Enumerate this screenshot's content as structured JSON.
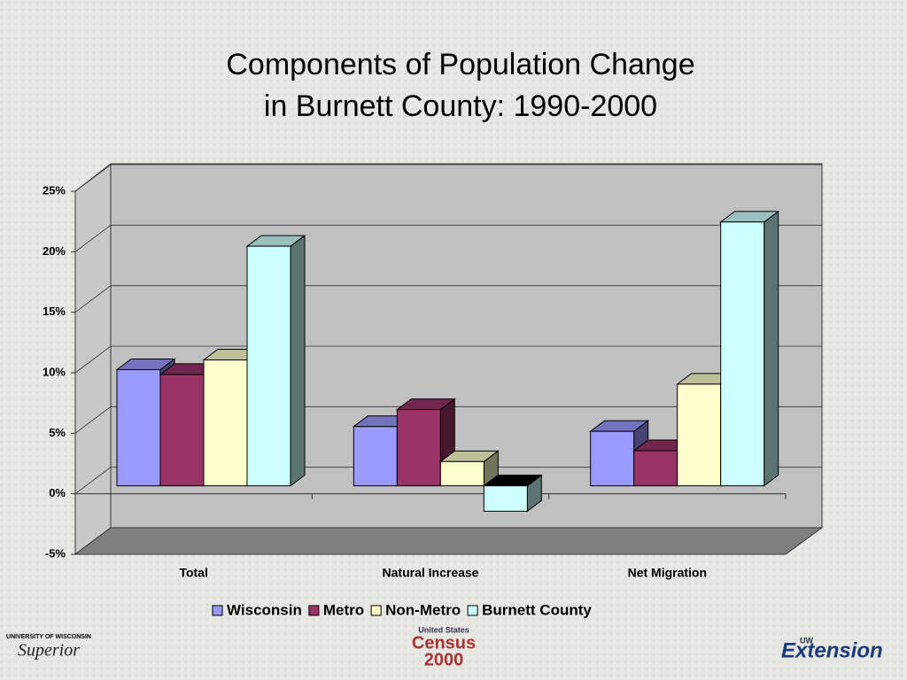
{
  "chart_data": {
    "type": "bar3d",
    "title": "Components of Population Change",
    "subtitle": "in Burnett County: 1990-2000",
    "categories": [
      "Total",
      "Natural Increase",
      "Net Migration"
    ],
    "series": [
      {
        "name": "Wisconsin",
        "color": "#9999ff",
        "values": [
          9.6,
          4.9,
          4.5
        ]
      },
      {
        "name": "Metro",
        "color": "#993366",
        "values": [
          9.2,
          6.3,
          2.9
        ]
      },
      {
        "name": "Non-Metro",
        "color": "#ffffcc",
        "values": [
          10.4,
          2.0,
          8.4
        ]
      },
      {
        "name": "Burnett County",
        "color": "#ccffff",
        "values": [
          19.8,
          -2.1,
          21.8
        ]
      }
    ],
    "ylim": [
      -5,
      25
    ],
    "yticks": [
      {
        "value": -5,
        "label": "-5%"
      },
      {
        "value": 0,
        "label": "0%"
      },
      {
        "value": 5,
        "label": "5%"
      },
      {
        "value": 10,
        "label": "10%"
      },
      {
        "value": 15,
        "label": "15%"
      },
      {
        "value": 20,
        "label": "20%"
      },
      {
        "value": 25,
        "label": "25%"
      }
    ],
    "grid": true
  },
  "logos": {
    "left": [
      "UNIVERSITY OF WISCONSIN",
      "Superior"
    ],
    "center": [
      "United States",
      "Census",
      "2000"
    ],
    "right": [
      "UW",
      "Extension"
    ]
  }
}
